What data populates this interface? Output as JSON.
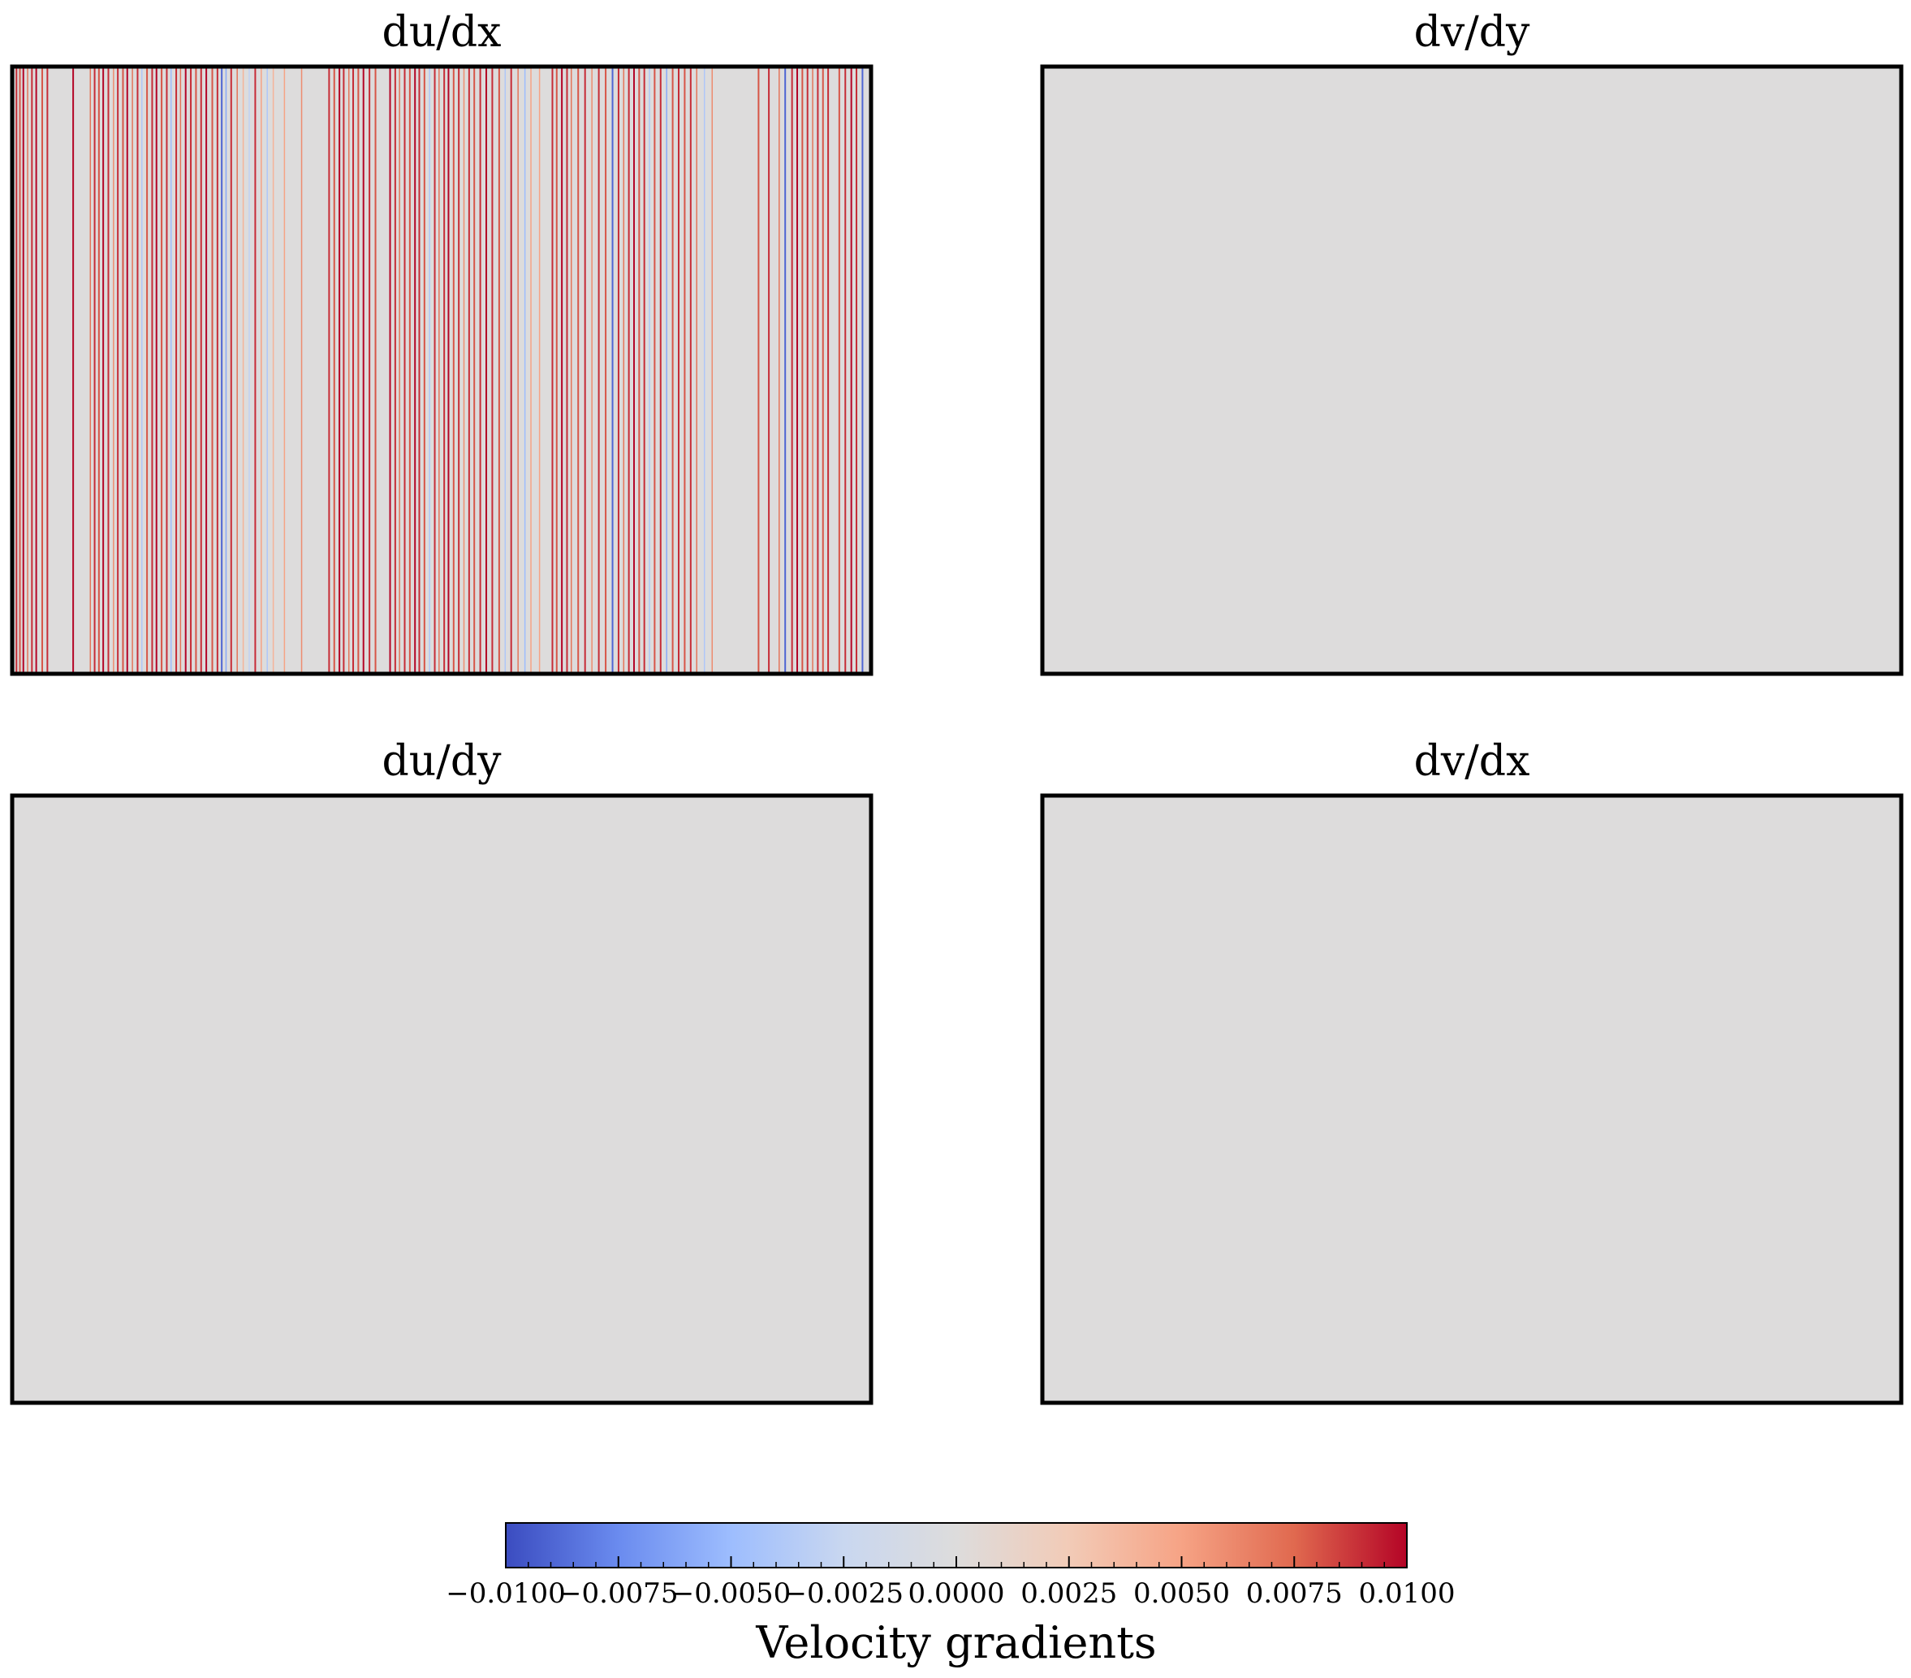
{
  "chart_data": {
    "type": "heatmap",
    "panels": [
      {
        "title": "du/dx",
        "pattern": "vertical-stripes",
        "background_value": 0.0,
        "stripes": [
          {
            "x": 0.005,
            "value": 0.009
          },
          {
            "x": 0.009,
            "value": 0.008
          },
          {
            "x": 0.013,
            "value": 0.01
          },
          {
            "x": 0.018,
            "value": 0.007
          },
          {
            "x": 0.023,
            "value": 0.009
          },
          {
            "x": 0.028,
            "value": 0.01
          },
          {
            "x": 0.035,
            "value": 0.008
          },
          {
            "x": 0.041,
            "value": 0.009
          },
          {
            "x": 0.071,
            "value": 0.01
          },
          {
            "x": 0.091,
            "value": 0.007
          },
          {
            "x": 0.096,
            "value": 0.009
          },
          {
            "x": 0.101,
            "value": 0.008
          },
          {
            "x": 0.106,
            "value": 0.01
          },
          {
            "x": 0.112,
            "value": 0.009
          },
          {
            "x": 0.118,
            "value": 0.006
          },
          {
            "x": 0.123,
            "value": 0.009
          },
          {
            "x": 0.129,
            "value": 0.008
          },
          {
            "x": 0.134,
            "value": 0.01
          },
          {
            "x": 0.14,
            "value": 0.007
          },
          {
            "x": 0.146,
            "value": 0.009
          },
          {
            "x": 0.151,
            "value": -0.004
          },
          {
            "x": 0.157,
            "value": 0.008
          },
          {
            "x": 0.163,
            "value": 0.009
          },
          {
            "x": 0.168,
            "value": 0.01
          },
          {
            "x": 0.174,
            "value": 0.008
          },
          {
            "x": 0.18,
            "value": 0.009
          },
          {
            "x": 0.185,
            "value": -0.005
          },
          {
            "x": 0.191,
            "value": 0.009
          },
          {
            "x": 0.196,
            "value": 0.007
          },
          {
            "x": 0.202,
            "value": 0.01
          },
          {
            "x": 0.208,
            "value": 0.009
          },
          {
            "x": 0.214,
            "value": 0.008
          },
          {
            "x": 0.22,
            "value": 0.009
          },
          {
            "x": 0.226,
            "value": 0.01
          },
          {
            "x": 0.233,
            "value": 0.008
          },
          {
            "x": 0.239,
            "value": 0.009
          },
          {
            "x": 0.244,
            "value": -0.009
          },
          {
            "x": 0.249,
            "value": -0.006
          },
          {
            "x": 0.255,
            "value": 0.009
          },
          {
            "x": 0.262,
            "value": 0.007
          },
          {
            "x": 0.269,
            "value": 0.004
          },
          {
            "x": 0.276,
            "value": -0.003
          },
          {
            "x": 0.283,
            "value": 0.009
          },
          {
            "x": 0.29,
            "value": 0.005
          },
          {
            "x": 0.297,
            "value": -0.004
          },
          {
            "x": 0.304,
            "value": 0.004
          },
          {
            "x": 0.317,
            "value": 0.005
          },
          {
            "x": 0.337,
            "value": 0.006
          },
          {
            "x": 0.369,
            "value": 0.009
          },
          {
            "x": 0.375,
            "value": 0.008
          },
          {
            "x": 0.381,
            "value": 0.01
          },
          {
            "x": 0.386,
            "value": 0.009
          },
          {
            "x": 0.392,
            "value": 0.007
          },
          {
            "x": 0.397,
            "value": 0.009
          },
          {
            "x": 0.403,
            "value": 0.008
          },
          {
            "x": 0.409,
            "value": 0.01
          },
          {
            "x": 0.416,
            "value": 0.009
          },
          {
            "x": 0.423,
            "value": 0.008
          },
          {
            "x": 0.44,
            "value": 0.01
          },
          {
            "x": 0.446,
            "value": 0.009
          },
          {
            "x": 0.451,
            "value": 0.007
          },
          {
            "x": 0.457,
            "value": 0.009
          },
          {
            "x": 0.463,
            "value": 0.008
          },
          {
            "x": 0.469,
            "value": 0.01
          },
          {
            "x": 0.474,
            "value": 0.009
          },
          {
            "x": 0.48,
            "value": 0.008
          },
          {
            "x": 0.486,
            "value": -0.004
          },
          {
            "x": 0.492,
            "value": 0.009
          },
          {
            "x": 0.497,
            "value": 0.007
          },
          {
            "x": 0.503,
            "value": 0.009
          },
          {
            "x": 0.508,
            "value": 0.01
          },
          {
            "x": 0.514,
            "value": 0.008
          },
          {
            "x": 0.52,
            "value": 0.009
          },
          {
            "x": 0.526,
            "value": 0.006
          },
          {
            "x": 0.532,
            "value": 0.009
          },
          {
            "x": 0.538,
            "value": 0.008
          },
          {
            "x": 0.545,
            "value": 0.009
          },
          {
            "x": 0.552,
            "value": 0.01
          },
          {
            "x": 0.559,
            "value": 0.009
          },
          {
            "x": 0.567,
            "value": 0.008
          },
          {
            "x": 0.574,
            "value": -0.004
          },
          {
            "x": 0.581,
            "value": 0.009
          },
          {
            "x": 0.589,
            "value": 0.007
          },
          {
            "x": 0.597,
            "value": -0.005
          },
          {
            "x": 0.604,
            "value": 0.005
          },
          {
            "x": 0.614,
            "value": 0.005
          },
          {
            "x": 0.629,
            "value": 0.009
          },
          {
            "x": 0.634,
            "value": 0.008
          },
          {
            "x": 0.64,
            "value": 0.01
          },
          {
            "x": 0.646,
            "value": 0.009
          },
          {
            "x": 0.651,
            "value": 0.007
          },
          {
            "x": 0.659,
            "value": 0.008
          },
          {
            "x": 0.667,
            "value": 0.009
          },
          {
            "x": 0.675,
            "value": 0.006
          },
          {
            "x": 0.683,
            "value": 0.009
          },
          {
            "x": 0.691,
            "value": 0.008
          },
          {
            "x": 0.699,
            "value": -0.009
          },
          {
            "x": 0.706,
            "value": 0.009
          },
          {
            "x": 0.712,
            "value": 0.007
          },
          {
            "x": 0.718,
            "value": 0.009
          },
          {
            "x": 0.724,
            "value": 0.01
          },
          {
            "x": 0.73,
            "value": 0.008
          },
          {
            "x": 0.736,
            "value": 0.009
          },
          {
            "x": 0.742,
            "value": -0.004
          },
          {
            "x": 0.748,
            "value": 0.008
          },
          {
            "x": 0.755,
            "value": 0.009
          },
          {
            "x": 0.762,
            "value": -0.006
          },
          {
            "x": 0.769,
            "value": 0.008
          },
          {
            "x": 0.776,
            "value": 0.009
          },
          {
            "x": 0.783,
            "value": 0.008
          },
          {
            "x": 0.79,
            "value": 0.009
          },
          {
            "x": 0.797,
            "value": 0.007
          },
          {
            "x": 0.806,
            "value": -0.004
          },
          {
            "x": 0.815,
            "value": 0.006
          },
          {
            "x": 0.869,
            "value": 0.008
          },
          {
            "x": 0.881,
            "value": 0.009
          },
          {
            "x": 0.893,
            "value": 0.007
          },
          {
            "x": 0.9,
            "value": -0.009
          },
          {
            "x": 0.908,
            "value": 0.009
          },
          {
            "x": 0.914,
            "value": 0.01
          },
          {
            "x": 0.92,
            "value": 0.008
          },
          {
            "x": 0.926,
            "value": 0.009
          },
          {
            "x": 0.932,
            "value": 0.007
          },
          {
            "x": 0.938,
            "value": 0.009
          },
          {
            "x": 0.944,
            "value": 0.008
          },
          {
            "x": 0.95,
            "value": 0.009
          },
          {
            "x": 0.963,
            "value": 0.008
          },
          {
            "x": 0.97,
            "value": 0.009
          },
          {
            "x": 0.977,
            "value": 0.01
          },
          {
            "x": 0.983,
            "value": 0.009
          },
          {
            "x": 0.99,
            "value": -0.009
          }
        ]
      },
      {
        "title": "dv/dy",
        "pattern": "uniform",
        "background_value": 0.0,
        "stripes": []
      },
      {
        "title": "du/dy",
        "pattern": "uniform",
        "background_value": 0.0,
        "stripes": []
      },
      {
        "title": "dv/dx",
        "pattern": "uniform",
        "background_value": 0.0,
        "stripes": []
      }
    ],
    "layout": "2x2 grid",
    "colormap": "coolwarm",
    "colormap_stops": [
      "#3b4cc0",
      "#6a8bef",
      "#9dbdfe",
      "#c9d7f0",
      "#dddcdc",
      "#f2cbb7",
      "#f6a385",
      "#e0694f",
      "#b40426"
    ],
    "colorbar": {
      "orientation": "horizontal",
      "placement": "bottom-center",
      "label": "Velocity gradients",
      "range": [
        -0.01,
        0.01
      ],
      "tick_values": [
        -0.01,
        -0.0075,
        -0.005,
        -0.0025,
        0.0,
        0.0025,
        0.005,
        0.0075,
        0.01
      ],
      "tick_labels": [
        "−0.0100",
        "−0.0075",
        "−0.0050",
        "−0.0025",
        "0.0000",
        "0.0025",
        "0.0050",
        "0.0075",
        "0.0100"
      ],
      "minor_ticks_per_interval": 4
    },
    "axes_ticks": false,
    "grid": false
  }
}
